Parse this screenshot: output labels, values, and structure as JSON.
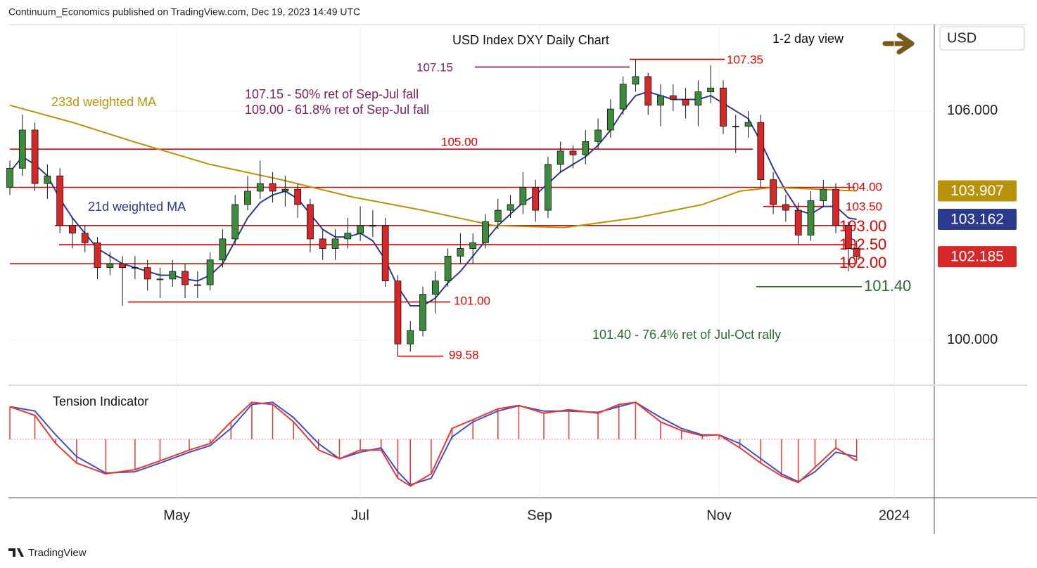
{
  "header": {
    "publisher": "Continuum_Economics published on TradingView.com, Dec 19, 2023 14:49 UTC",
    "footer": "TradingView"
  },
  "chart_data": [
    {
      "type": "candlestick",
      "title": "USD Index DXY Daily Chart",
      "subtitle": "1-2 day view",
      "currency": "USD",
      "x": [
        0,
        3,
        6,
        9,
        12,
        15,
        18,
        21,
        24,
        27,
        30,
        33,
        36,
        39,
        42,
        45,
        48,
        51,
        54,
        57,
        60,
        63,
        66,
        69,
        72,
        75,
        78,
        81,
        84,
        87,
        90,
        93,
        96,
        99,
        102,
        105,
        108,
        111,
        114,
        117,
        120,
        123,
        126,
        129,
        132,
        135,
        138,
        141,
        144,
        147,
        150,
        153,
        156,
        159,
        162,
        165,
        168,
        171,
        174,
        177,
        180,
        183,
        186,
        189,
        192,
        195,
        198,
        201,
        203
      ],
      "open": [
        104.0,
        104.5,
        105.5,
        104.1,
        104.3,
        103.0,
        102.8,
        102.55,
        101.9,
        102.0,
        101.9,
        101.9,
        101.6,
        101.6,
        101.8,
        101.45,
        101.45,
        102.1,
        102.65,
        103.55,
        103.9,
        104.1,
        103.9,
        103.95,
        103.55,
        102.65,
        102.4,
        102.65,
        102.8,
        103.0,
        103.0,
        101.55,
        99.9,
        100.25,
        101.2,
        101.55,
        102.2,
        102.4,
        102.55,
        103.1,
        103.4,
        103.55,
        104.0,
        103.4,
        104.6,
        104.95,
        104.85,
        105.2,
        105.5,
        106.05,
        106.7,
        106.9,
        106.15,
        106.4,
        106.3,
        106.15,
        106.5,
        106.6,
        105.6,
        105.6,
        105.7,
        104.2,
        103.55,
        103.4,
        102.75,
        103.65,
        103.95,
        103.0,
        102.4
      ],
      "high": [
        104.7,
        105.9,
        105.7,
        104.6,
        104.5,
        103.2,
        103.0,
        102.7,
        102.3,
        102.2,
        102.2,
        102.1,
        101.9,
        102.1,
        102.0,
        101.8,
        102.3,
        102.9,
        103.8,
        104.3,
        104.7,
        104.4,
        104.3,
        104.1,
        103.7,
        102.9,
        102.9,
        103.2,
        103.5,
        103.4,
        103.2,
        101.7,
        100.5,
        101.4,
        101.8,
        102.4,
        102.8,
        102.8,
        103.3,
        103.7,
        103.8,
        104.4,
        104.2,
        104.8,
        105.2,
        105.1,
        105.5,
        105.8,
        106.3,
        106.9,
        107.35,
        107.0,
        106.7,
        106.7,
        106.6,
        106.8,
        107.2,
        106.8,
        105.9,
        106.0,
        105.9,
        104.4,
        103.8,
        103.6,
        103.9,
        104.2,
        104.1,
        103.1,
        102.6
      ],
      "low": [
        103.8,
        104.3,
        103.9,
        103.7,
        102.8,
        102.4,
        102.3,
        101.6,
        101.7,
        100.9,
        101.6,
        101.3,
        101.1,
        101.4,
        101.1,
        101.1,
        101.3,
        101.9,
        102.5,
        103.4,
        103.7,
        103.6,
        103.5,
        103.2,
        102.3,
        102.1,
        102.1,
        102.4,
        102.6,
        102.7,
        101.4,
        99.58,
        99.7,
        100.1,
        100.7,
        101.4,
        102.0,
        102.0,
        102.4,
        102.9,
        103.2,
        103.3,
        103.1,
        103.2,
        104.4,
        104.5,
        104.6,
        105.0,
        105.3,
        105.9,
        106.5,
        105.9,
        105.6,
        106.0,
        105.8,
        105.6,
        106.2,
        105.4,
        104.9,
        105.3,
        104.0,
        103.3,
        103.1,
        102.5,
        102.6,
        103.5,
        102.8,
        101.8,
        102.0
      ],
      "close": [
        104.5,
        105.5,
        104.1,
        104.3,
        103.0,
        102.8,
        102.55,
        101.9,
        102.0,
        101.9,
        101.9,
        101.6,
        101.6,
        101.8,
        101.45,
        101.45,
        102.1,
        102.65,
        103.55,
        103.9,
        104.1,
        103.9,
        103.95,
        103.55,
        102.65,
        102.4,
        102.65,
        102.8,
        103.0,
        103.0,
        101.55,
        99.9,
        100.25,
        101.2,
        101.55,
        102.2,
        102.4,
        102.55,
        103.1,
        103.4,
        103.55,
        104.0,
        103.4,
        104.6,
        104.95,
        104.85,
        105.2,
        105.5,
        106.05,
        106.7,
        106.9,
        106.15,
        106.4,
        106.3,
        106.15,
        106.5,
        106.6,
        105.6,
        105.6,
        105.7,
        104.2,
        103.55,
        103.4,
        102.75,
        103.65,
        103.95,
        103.0,
        102.4,
        102.185
      ],
      "colors": {
        "up": "#3d8b3d",
        "down": "#d62828"
      },
      "xlim": [
        -0.34,
        221.6
      ],
      "xticks": [
        {
          "value": 40,
          "label": "May"
        },
        {
          "value": 84,
          "label": "Jul"
        },
        {
          "value": 127,
          "label": "Sep"
        },
        {
          "value": 170,
          "label": "Nov"
        },
        {
          "value": 212,
          "label": "2024"
        }
      ],
      "ylim": [
        98.82,
        108.26
      ],
      "yticks": [
        {
          "value": 100,
          "label": "100.000"
        },
        {
          "value": 106,
          "label": "106.000"
        }
      ],
      "ma": [
        {
          "name": "21d weighted MA",
          "color": "#2b3a8f",
          "x": [
            0,
            3,
            6,
            9,
            12,
            15,
            18,
            21,
            24,
            27,
            30,
            33,
            36,
            39,
            42,
            45,
            48,
            51,
            54,
            57,
            60,
            63,
            66,
            69,
            72,
            75,
            78,
            81,
            84,
            87,
            90,
            93,
            96,
            99,
            102,
            105,
            108,
            111,
            114,
            117,
            120,
            123,
            126,
            129,
            132,
            135,
            138,
            141,
            144,
            147,
            150,
            153,
            156,
            159,
            162,
            165,
            168,
            171,
            174,
            177,
            180,
            183,
            186,
            189,
            192,
            195,
            198,
            201,
            203
          ],
          "values": [
            104.4,
            104.8,
            104.6,
            104.3,
            103.7,
            103.2,
            102.8,
            102.4,
            102.2,
            102.0,
            101.9,
            101.8,
            101.7,
            101.7,
            101.6,
            101.55,
            101.7,
            102.0,
            102.6,
            103.2,
            103.6,
            103.8,
            103.9,
            103.7,
            103.3,
            102.9,
            102.7,
            102.7,
            102.8,
            102.6,
            102.1,
            101.4,
            100.9,
            100.9,
            101.1,
            101.5,
            101.8,
            102.2,
            102.6,
            103.0,
            103.3,
            103.6,
            103.8,
            104.1,
            104.4,
            104.6,
            104.8,
            105.1,
            105.5,
            106.0,
            106.4,
            106.5,
            106.4,
            106.3,
            106.3,
            106.3,
            106.4,
            106.2,
            106.0,
            105.8,
            105.2,
            104.5,
            103.9,
            103.4,
            103.3,
            103.5,
            103.5,
            103.2,
            103.162
          ]
        },
        {
          "name": "233d weighted MA",
          "color": "#b8930a",
          "x": [
            0,
            15,
            31,
            48,
            65,
            82,
            99,
            116,
            133,
            150,
            166,
            175,
            183,
            203
          ],
          "values": [
            106.15,
            105.7,
            105.15,
            104.6,
            104.2,
            103.75,
            103.4,
            103.0,
            102.95,
            103.2,
            103.55,
            103.9,
            104.0,
            103.907
          ]
        }
      ],
      "levels": [
        {
          "value": 105,
          "label": "105.00",
          "color": "#e00000"
        },
        {
          "value": 104,
          "label": "104.00",
          "color": "#e00000"
        },
        {
          "value": 103.5,
          "label": "103.50",
          "color": "#e00000"
        },
        {
          "value": 103,
          "label": "103.00",
          "color": "#e00000"
        },
        {
          "value": 102.5,
          "label": "102.50",
          "color": "#e00000"
        },
        {
          "value": 102,
          "label": "102.00",
          "color": "#e00000"
        },
        {
          "value": 101,
          "label": "101.00",
          "color": "#e00000"
        },
        {
          "value": 99.58,
          "color": "#e00000"
        },
        {
          "value": 107.35,
          "color": "#e00000"
        },
        {
          "value": 107.15,
          "color": "#7a1f5c"
        },
        {
          "value": 101.4,
          "label": "101.40",
          "color": "#2e6b2e"
        }
      ],
      "annotations": [
        {
          "text": "107.15 - 50% ret of Sep-Jul fall",
          "color": "#7a1f5c"
        },
        {
          "text": "109.00 - 61.8% ret of Sep-Jul fall",
          "color": "#7a1f5c"
        },
        {
          "text": "101.40 - 76.4% ret of Jul-Oct rally",
          "color": "#2e6b2e"
        }
      ]
    },
    {
      "type": "tension",
      "title": "Tension Indicator",
      "x": [
        0,
        6,
        11,
        16,
        23,
        30,
        36,
        43,
        48,
        53,
        58,
        63,
        68,
        74,
        79,
        84,
        89,
        93,
        96,
        101,
        106,
        111,
        117,
        122,
        128,
        134,
        141,
        146,
        150,
        156,
        161,
        166,
        170,
        175,
        180,
        185,
        189,
        193,
        198,
        203
      ],
      "ylim": [
        -1.3,
        1.05
      ],
      "series": [
        {
          "color": "#e53935",
          "values": [
            0.75,
            0.55,
            -0.1,
            -0.55,
            -0.8,
            -0.7,
            -0.5,
            -0.25,
            -0.1,
            0.4,
            0.85,
            0.8,
            0.4,
            -0.25,
            -0.45,
            -0.25,
            -0.25,
            -0.9,
            -1.08,
            -0.8,
            0.25,
            0.45,
            0.7,
            0.78,
            0.6,
            0.68,
            0.6,
            0.8,
            0.85,
            0.4,
            0.2,
            0.08,
            0.1,
            -0.2,
            -0.55,
            -0.85,
            -1.0,
            -0.65,
            -0.2,
            -0.5
          ]
        },
        {
          "color": "#3f51c5",
          "values": [
            0.75,
            0.65,
            0.1,
            -0.4,
            -0.78,
            -0.75,
            -0.55,
            -0.3,
            -0.15,
            0.25,
            0.8,
            0.85,
            0.5,
            -0.1,
            -0.45,
            -0.3,
            -0.2,
            -0.75,
            -1.05,
            -0.9,
            0.05,
            0.4,
            0.65,
            0.77,
            0.65,
            0.65,
            0.62,
            0.75,
            0.85,
            0.5,
            0.25,
            0.1,
            0.1,
            -0.1,
            -0.45,
            -0.8,
            -0.98,
            -0.75,
            -0.3,
            -0.4
          ]
        }
      ]
    }
  ]
}
